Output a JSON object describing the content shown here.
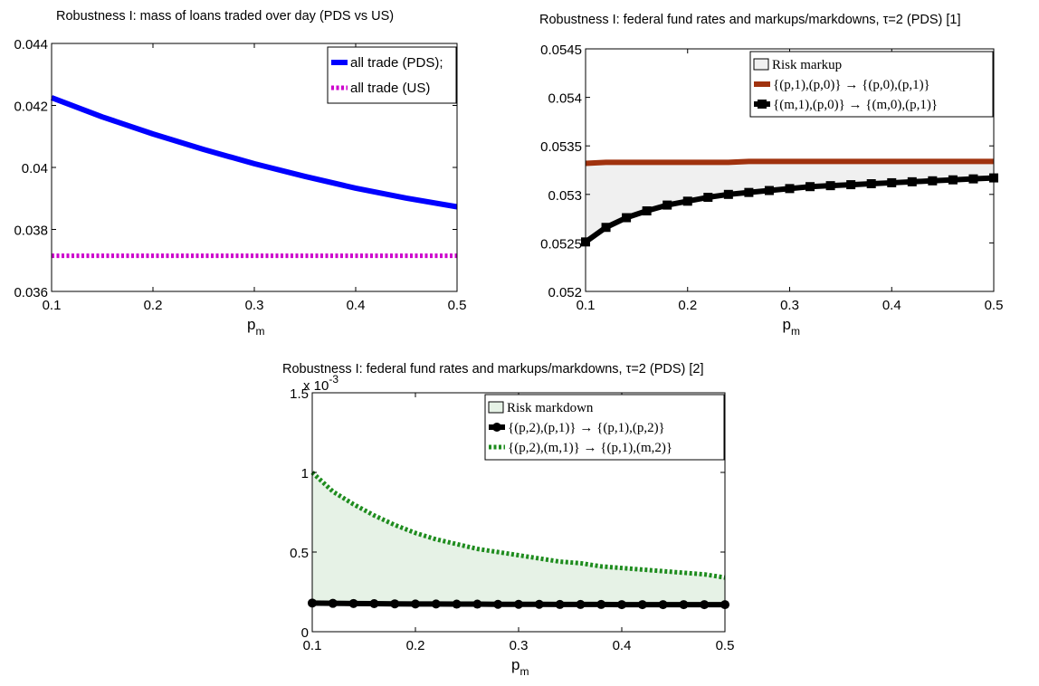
{
  "chart_data": [
    {
      "type": "line",
      "title": "Robustness I: mass of loans traded over day (PDS vs US)",
      "xlabel": "p",
      "xlabel_sub": "m",
      "ylabel": "",
      "xlim": [
        0.1,
        0.5
      ],
      "ylim": [
        0.036,
        0.044
      ],
      "x_ticks": [
        "0.1",
        "0.2",
        "0.3",
        "0.4",
        "0.5"
      ],
      "y_ticks": [
        "0.036",
        "0.038",
        "0.04",
        "0.042",
        "0.044"
      ],
      "legend_position": "top-right",
      "grid": false,
      "x": [
        0.1,
        0.15,
        0.2,
        0.25,
        0.3,
        0.35,
        0.4,
        0.45,
        0.5
      ],
      "series": [
        {
          "name": "all trade (PDS);",
          "color": "#0000ff",
          "style": "solid",
          "values": [
            0.04225,
            0.04163,
            0.04108,
            0.04058,
            0.04012,
            0.03971,
            0.03933,
            0.03901,
            0.03873
          ]
        },
        {
          "name": "all trade (US)",
          "color": "#cc00cc",
          "style": "dotted",
          "values": [
            0.03715,
            0.03715,
            0.03715,
            0.03715,
            0.03715,
            0.03715,
            0.03715,
            0.03715,
            0.03715
          ]
        }
      ]
    },
    {
      "type": "line",
      "title": "Robustness I: federal fund rates and markups/markdowns, τ=2 (PDS) [1]",
      "xlabel": "p",
      "xlabel_sub": "m",
      "ylabel": "",
      "xlim": [
        0.1,
        0.5
      ],
      "ylim": [
        0.052,
        0.0545
      ],
      "x_ticks": [
        "0.1",
        "0.2",
        "0.3",
        "0.4",
        "0.5"
      ],
      "y_ticks": [
        "0.052",
        "0.0525",
        "0.053",
        "0.0535",
        "0.054",
        "0.0545"
      ],
      "legend_position": "top-right",
      "grid": false,
      "fill": {
        "name": "Risk markup",
        "color": "#f0f0f0",
        "between": [
          0,
          1
        ]
      },
      "x": [
        0.1,
        0.12,
        0.14,
        0.16,
        0.18,
        0.2,
        0.22,
        0.24,
        0.26,
        0.28,
        0.3,
        0.32,
        0.34,
        0.36,
        0.38,
        0.4,
        0.42,
        0.44,
        0.46,
        0.48,
        0.5
      ],
      "series": [
        {
          "name": "{(p,1),(p,0)} → {(p,0),(p,1)}",
          "color": "#a0320e",
          "style": "solid",
          "values": [
            0.05332,
            0.05333,
            0.05333,
            0.05333,
            0.05333,
            0.05333,
            0.05333,
            0.05333,
            0.05334,
            0.05334,
            0.05334,
            0.05334,
            0.05334,
            0.05334,
            0.05334,
            0.05334,
            0.05334,
            0.05334,
            0.05334,
            0.05334,
            0.05334
          ]
        },
        {
          "name": "{(m,1),(p,0)} → {(m,0),(p,1)}",
          "color": "#000000",
          "style": "solid-square-markers",
          "values": [
            0.05251,
            0.05266,
            0.05276,
            0.05283,
            0.05289,
            0.05293,
            0.05297,
            0.053,
            0.05302,
            0.05304,
            0.05306,
            0.05308,
            0.05309,
            0.0531,
            0.05311,
            0.05312,
            0.05313,
            0.05314,
            0.05315,
            0.05316,
            0.05317
          ]
        }
      ]
    },
    {
      "type": "line",
      "title": "Robustness I: federal fund rates and markups/markdowns, τ=2 (PDS) [2]",
      "xlabel": "p",
      "xlabel_sub": "m",
      "ylabel": "",
      "y_multiplier": "x 10",
      "y_multiplier_exp": "-3",
      "xlim": [
        0.1,
        0.5
      ],
      "ylim": [
        0,
        1.5
      ],
      "x_ticks": [
        "0.1",
        "0.2",
        "0.3",
        "0.4",
        "0.5"
      ],
      "y_ticks": [
        "0",
        "0.5",
        "1",
        "1.5"
      ],
      "legend_position": "top-right",
      "grid": false,
      "fill": {
        "name": "Risk markdown",
        "color": "#e6f2e6",
        "between": [
          0,
          1
        ]
      },
      "x": [
        0.1,
        0.12,
        0.14,
        0.16,
        0.18,
        0.2,
        0.22,
        0.24,
        0.26,
        0.28,
        0.3,
        0.32,
        0.34,
        0.36,
        0.38,
        0.4,
        0.42,
        0.44,
        0.46,
        0.48,
        0.5
      ],
      "series": [
        {
          "name": "{(p,2),(p,1)} → {(p,1),(p,2)}",
          "color": "#000000",
          "style": "solid-circle-markers",
          "values": [
            0.18,
            0.178,
            0.177,
            0.176,
            0.175,
            0.174,
            0.174,
            0.173,
            0.173,
            0.172,
            0.172,
            0.172,
            0.171,
            0.171,
            0.171,
            0.17,
            0.17,
            0.17,
            0.17,
            0.17,
            0.17
          ]
        },
        {
          "name": "{(p,2),(m,1)} → {(p,1),(m,2)}",
          "color": "#1e8c1e",
          "style": "dotted",
          "values": [
            1.0,
            0.88,
            0.8,
            0.73,
            0.67,
            0.62,
            0.58,
            0.55,
            0.52,
            0.5,
            0.48,
            0.46,
            0.44,
            0.43,
            0.41,
            0.4,
            0.39,
            0.38,
            0.37,
            0.36,
            0.34
          ]
        }
      ]
    }
  ]
}
